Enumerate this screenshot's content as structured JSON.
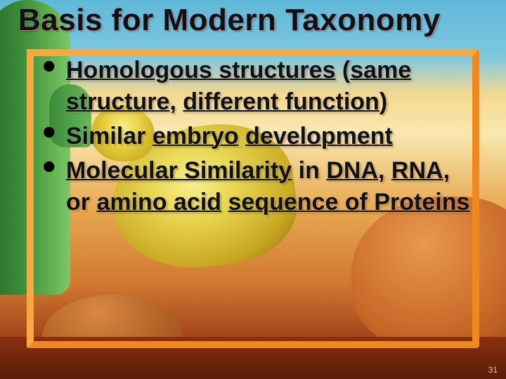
{
  "slide": {
    "title": "Basis for Modern Taxonomy",
    "title_fontsize": 44,
    "title_color": "#101018",
    "bullets": [
      {
        "segments": [
          {
            "text": "Homologous structures",
            "underline": true
          },
          {
            "text": " (",
            "underline": false
          },
          {
            "text": "same structure",
            "underline": true
          },
          {
            "text": ", ",
            "underline": false
          },
          {
            "text": "different function",
            "underline": true
          },
          {
            "text": ")",
            "underline": false
          }
        ]
      },
      {
        "segments": [
          {
            "text": "Similar ",
            "underline": false
          },
          {
            "text": "embryo",
            "underline": true
          },
          {
            "text": " ",
            "underline": false
          },
          {
            "text": "development",
            "underline": true
          }
        ]
      },
      {
        "segments": [
          {
            "text": "Molecular Similarity",
            "underline": true
          },
          {
            "text": " in ",
            "underline": false
          },
          {
            "text": "DNA",
            "underline": true
          },
          {
            "text": ", ",
            "underline": false
          },
          {
            "text": "RNA",
            "underline": true
          },
          {
            "text": ", or ",
            "underline": false
          },
          {
            "text": "amino acid",
            "underline": true
          },
          {
            "text": " ",
            "underline": false
          },
          {
            "text": "sequence of Proteins",
            "underline": true
          }
        ]
      }
    ],
    "body_fontsize": 34,
    "body_color": "#101018",
    "bullet_marker": "•",
    "page_number": "31",
    "frame_border_color": "#f08820",
    "frame_highlight_color": "#f8a840",
    "background_gradient": [
      "#5fb8d8",
      "#7fc8e0",
      "#f5d890",
      "#f8e8b0",
      "#e8a850",
      "#d07830",
      "#9a3818",
      "#7a2810"
    ],
    "font_family": "Comic Sans MS"
  }
}
